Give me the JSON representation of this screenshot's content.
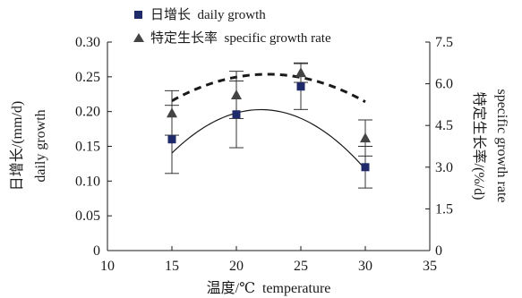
{
  "chart_data": {
    "type": "scatter",
    "legend": {
      "placement": "top-center",
      "entries": [
        {
          "marker": "square",
          "label": "日增长  daily growth"
        },
        {
          "marker": "triangle",
          "label": "特定生长率  specific growth rate"
        }
      ]
    },
    "xlabel": "温度/℃  temperature",
    "xlim": [
      10,
      35
    ],
    "xticks": [
      "10",
      "15",
      "20",
      "25",
      "30",
      "35"
    ],
    "y_left": {
      "label_zh": "日增长/(mm/d)",
      "label_en": "daily growth",
      "lim": [
        0,
        0.3
      ],
      "ticks": [
        "0",
        "0.05",
        "0.10",
        "0.15",
        "0.20",
        "0.25",
        "0.30"
      ]
    },
    "y_right": {
      "label_zh": "特定生长率/(%/d)",
      "label_en": "specific growth rate",
      "lim": [
        0,
        7.5
      ],
      "ticks": [
        "0",
        "1.5",
        "3.0",
        "4.5",
        "6.0",
        "7.5"
      ]
    },
    "series": [
      {
        "name": "日增长  daily growth",
        "axis": "left",
        "marker": "square",
        "color": "#1f2a6b",
        "x": [
          15,
          20,
          25,
          30
        ],
        "y": [
          0.16,
          0.196,
          0.236,
          0.12
        ],
        "err": [
          0.049,
          0.048,
          0.033,
          0.03
        ],
        "fit": {
          "style": "solid",
          "coef": [
            -0.426,
            0.0574,
            -0.00131
          ]
        }
      },
      {
        "name": "特定生长率  specific growth rate",
        "axis": "right",
        "marker": "triangle",
        "color": "#444444",
        "x": [
          15,
          20,
          25,
          30
        ],
        "y": [
          4.95,
          5.6,
          6.4,
          4.05
        ],
        "err": [
          0.8,
          0.85,
          0.35,
          0.65
        ],
        "fit": {
          "style": "dashed",
          "coef": [
            -2.36,
            0.776,
            -0.0173
          ]
        }
      }
    ],
    "grid": false,
    "colors": {
      "axis": "#1a1a1a",
      "fit": "#1a1a1a"
    }
  }
}
